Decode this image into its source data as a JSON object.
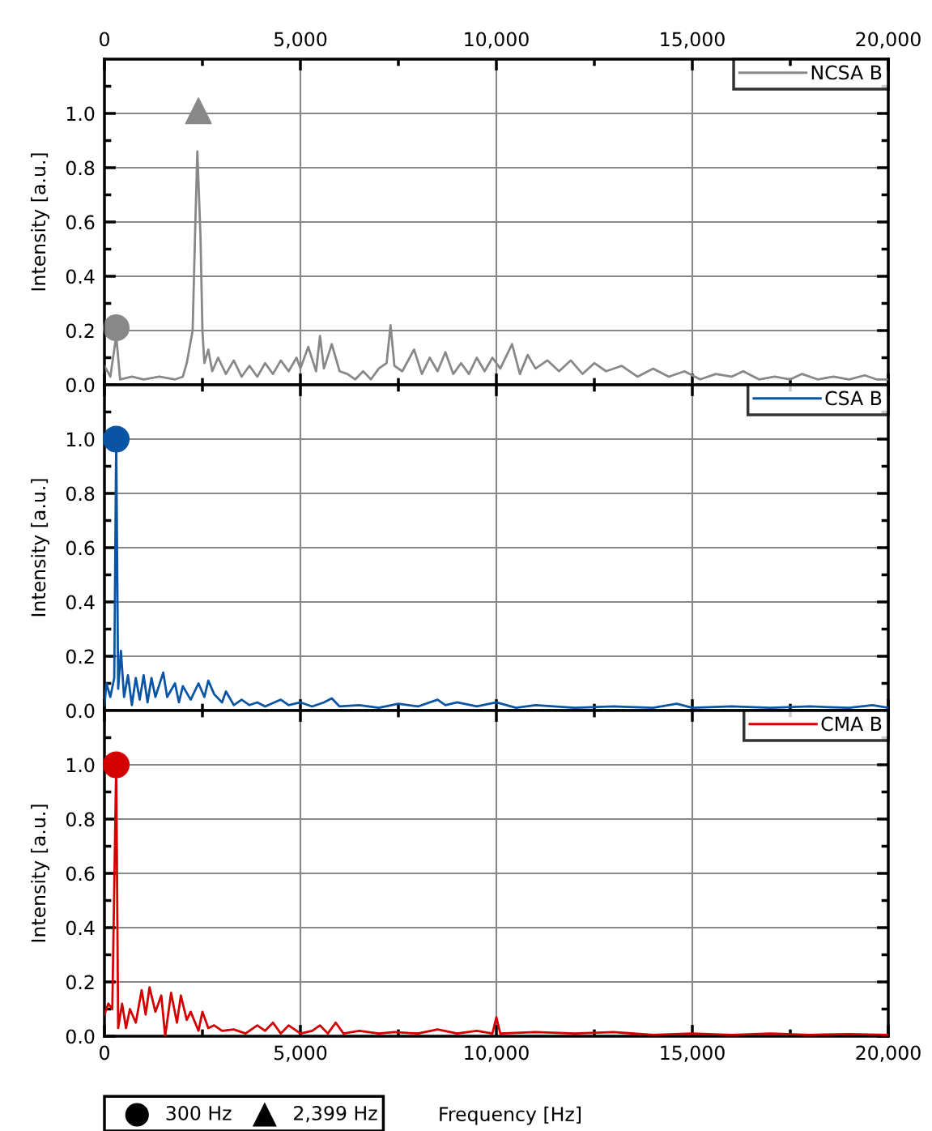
{
  "chart_data": [
    {
      "type": "line",
      "ylabel": "Intensity [a.u.]",
      "legend": "top right",
      "grid": true,
      "tick_labels": "y",
      "xlim": [
        0,
        20000
      ],
      "xticks": [
        0,
        {
          "value": 2500,
          "label": null
        },
        5000,
        {
          "value": 7500,
          "label": null
        },
        10000,
        {
          "value": 12500,
          "label": null
        },
        15000,
        {
          "value": 17500,
          "label": null
        },
        20000
      ],
      "x2lim": [
        0,
        20000
      ],
      "x2ticks": [
        {
          "value": 0,
          "label": "0"
        },
        {
          "value": 2500,
          "label": null
        },
        {
          "value": 5000,
          "label": "5,000"
        },
        {
          "value": 7500,
          "label": null
        },
        {
          "value": 10000,
          "label": "10,000"
        },
        {
          "value": 12500,
          "label": null
        },
        {
          "value": 15000,
          "label": "15,000"
        },
        {
          "value": 17500,
          "label": null
        },
        {
          "value": 20000,
          "label": "20,000"
        }
      ],
      "ylim": [
        0,
        1.2
      ],
      "yticks": [
        {
          "value": 0,
          "label": "0.0"
        },
        {
          "value": 0.1,
          "label": null
        },
        {
          "value": 0.2,
          "label": "0.2"
        },
        {
          "value": 0.3,
          "label": null
        },
        {
          "value": 0.4,
          "label": "0.4"
        },
        {
          "value": 0.5,
          "label": null
        },
        {
          "value": 0.6,
          "label": "0.6"
        },
        {
          "value": 0.7,
          "label": null
        },
        {
          "value": 0.8,
          "label": "0.8"
        },
        {
          "value": 0.9,
          "label": null
        },
        {
          "value": 1.0,
          "label": "1.0"
        },
        {
          "value": 1.1,
          "label": null
        }
      ],
      "series": [
        {
          "name": "NCSA B",
          "color": "#888888",
          "x": [
            0,
            150,
            300,
            400,
            700,
            1000,
            1400,
            1800,
            2000,
            2100,
            2250,
            2320,
            2370,
            2450,
            2500,
            2550,
            2650,
            2750,
            2900,
            3100,
            3300,
            3500,
            3700,
            3900,
            4100,
            4300,
            4500,
            4700,
            4900,
            5000,
            5200,
            5400,
            5500,
            5600,
            5800,
            6000,
            6200,
            6400,
            6600,
            6800,
            7000,
            7200,
            7300,
            7400,
            7600,
            7900,
            8100,
            8300,
            8500,
            8700,
            8900,
            9100,
            9300,
            9500,
            9700,
            9900,
            10100,
            10300,
            10400,
            10600,
            10800,
            11000,
            11300,
            11600,
            11900,
            12200,
            12500,
            12800,
            13200,
            13600,
            14000,
            14400,
            14800,
            15200,
            15600,
            16000,
            16300,
            16700,
            17100,
            17500,
            17800,
            18200,
            18600,
            19000,
            19400,
            19700,
            20000
          ],
          "values": [
            0.07,
            0.03,
            0.18,
            0.02,
            0.03,
            0.02,
            0.03,
            0.02,
            0.03,
            0.08,
            0.2,
            0.6,
            0.86,
            0.55,
            0.2,
            0.08,
            0.13,
            0.05,
            0.1,
            0.04,
            0.09,
            0.03,
            0.07,
            0.03,
            0.08,
            0.04,
            0.09,
            0.05,
            0.1,
            0.06,
            0.14,
            0.05,
            0.18,
            0.06,
            0.15,
            0.05,
            0.04,
            0.02,
            0.05,
            0.02,
            0.06,
            0.08,
            0.22,
            0.07,
            0.05,
            0.13,
            0.04,
            0.1,
            0.05,
            0.12,
            0.04,
            0.08,
            0.04,
            0.1,
            0.05,
            0.1,
            0.06,
            0.12,
            0.15,
            0.04,
            0.11,
            0.06,
            0.09,
            0.05,
            0.09,
            0.04,
            0.08,
            0.05,
            0.07,
            0.03,
            0.06,
            0.03,
            0.05,
            0.02,
            0.04,
            0.03,
            0.05,
            0.02,
            0.03,
            0.02,
            0.04,
            0.02,
            0.03,
            0.02,
            0.035,
            0.02,
            0.02
          ]
        },
        {
          "type": "scatter",
          "marker": "circle",
          "color": "#888888",
          "x": [
            300
          ],
          "values": [
            0.21
          ]
        },
        {
          "type": "scatter",
          "marker": "triangle",
          "color": "#888888",
          "x": [
            2399
          ],
          "values": [
            1.01
          ]
        }
      ]
    },
    {
      "type": "line",
      "ylabel": "Intensity [a.u.]",
      "legend": "top right",
      "grid": true,
      "tick_labels": "y",
      "xlim": [
        0,
        20000
      ],
      "xticks": [
        0,
        {
          "value": 2500,
          "label": null
        },
        5000,
        {
          "value": 7500,
          "label": null
        },
        10000,
        {
          "value": 12500,
          "label": null
        },
        15000,
        {
          "value": 17500,
          "label": null
        },
        20000
      ],
      "ylim": [
        0,
        1.2
      ],
      "yticks": [
        {
          "value": 0,
          "label": "0.0"
        },
        {
          "value": 0.1,
          "label": null
        },
        {
          "value": 0.2,
          "label": "0.2"
        },
        {
          "value": 0.3,
          "label": null
        },
        {
          "value": 0.4,
          "label": "0.4"
        },
        {
          "value": 0.5,
          "label": null
        },
        {
          "value": 0.6,
          "label": "0.6"
        },
        {
          "value": 0.7,
          "label": null
        },
        {
          "value": 0.8,
          "label": "0.8"
        },
        {
          "value": 0.9,
          "label": null
        },
        {
          "value": 1.0,
          "label": "1.0"
        },
        {
          "value": 1.1,
          "label": null
        }
      ],
      "series": [
        {
          "name": "CSA B",
          "color": "#0a55a3",
          "x": [
            0,
            50,
            150,
            250,
            300,
            350,
            420,
            500,
            600,
            700,
            800,
            900,
            1000,
            1100,
            1200,
            1300,
            1500,
            1600,
            1800,
            1900,
            2000,
            2200,
            2400,
            2550,
            2650,
            2800,
            3000,
            3100,
            3300,
            3500,
            3700,
            3900,
            4100,
            4500,
            4700,
            5000,
            5300,
            5600,
            5800,
            6000,
            6500,
            7000,
            7500,
            8000,
            8500,
            8700,
            9000,
            9500,
            10000,
            10500,
            11000,
            12000,
            13000,
            14000,
            14600,
            15000,
            16000,
            17000,
            18000,
            19000,
            19600,
            20000
          ],
          "values": [
            0.02,
            0.1,
            0.05,
            0.12,
            1.0,
            0.08,
            0.22,
            0.05,
            0.13,
            0.02,
            0.12,
            0.04,
            0.13,
            0.03,
            0.12,
            0.05,
            0.14,
            0.05,
            0.1,
            0.03,
            0.09,
            0.04,
            0.1,
            0.05,
            0.11,
            0.06,
            0.03,
            0.07,
            0.02,
            0.04,
            0.02,
            0.03,
            0.015,
            0.04,
            0.02,
            0.03,
            0.015,
            0.03,
            0.045,
            0.015,
            0.02,
            0.01,
            0.025,
            0.015,
            0.04,
            0.02,
            0.03,
            0.015,
            0.03,
            0.01,
            0.02,
            0.01,
            0.015,
            0.01,
            0.025,
            0.01,
            0.015,
            0.01,
            0.015,
            0.01,
            0.02,
            0.01
          ]
        },
        {
          "type": "scatter",
          "marker": "circle",
          "color": "#0a55a3",
          "x": [
            300
          ],
          "values": [
            1.0
          ]
        }
      ]
    },
    {
      "type": "line",
      "ylabel": "Intensity [a.u.]",
      "xlabel": "Frequency [Hz]",
      "legend": "top right",
      "grid": true,
      "annotations": [
        "300 Hz",
        "2,399 Hz"
      ],
      "xlim": [
        0,
        20000
      ],
      "xticks": [
        {
          "value": 0,
          "label": "0"
        },
        {
          "value": 2500,
          "label": null
        },
        {
          "value": 5000,
          "label": "5,000"
        },
        {
          "value": 7500,
          "label": null
        },
        {
          "value": 10000,
          "label": "10,000"
        },
        {
          "value": 12500,
          "label": null
        },
        {
          "value": 15000,
          "label": "15,000"
        },
        {
          "value": 17500,
          "label": null
        },
        {
          "value": 20000,
          "label": "20,000"
        }
      ],
      "ylim": [
        0,
        1.2
      ],
      "yticks": [
        {
          "value": 0,
          "label": "0.0"
        },
        {
          "value": 0.1,
          "label": null
        },
        {
          "value": 0.2,
          "label": "0.2"
        },
        {
          "value": 0.3,
          "label": null
        },
        {
          "value": 0.4,
          "label": "0.4"
        },
        {
          "value": 0.5,
          "label": null
        },
        {
          "value": 0.6,
          "label": "0.6"
        },
        {
          "value": 0.7,
          "label": null
        },
        {
          "value": 0.8,
          "label": "0.8"
        },
        {
          "value": 0.9,
          "label": null
        },
        {
          "value": 1.0,
          "label": "1.0"
        },
        {
          "value": 1.1,
          "label": null
        }
      ],
      "series": [
        {
          "name": "CMA B",
          "color": "#d40000",
          "x": [
            0,
            100,
            200,
            300,
            350,
            450,
            550,
            650,
            800,
            950,
            1050,
            1150,
            1300,
            1450,
            1550,
            1700,
            1850,
            1950,
            2100,
            2200,
            2400,
            2500,
            2650,
            2800,
            3000,
            3300,
            3600,
            3900,
            4100,
            4300,
            4500,
            4700,
            5000,
            5300,
            5500,
            5700,
            5900,
            6100,
            6500,
            7000,
            7400,
            8000,
            8500,
            9000,
            9500,
            9900,
            10000,
            10100,
            11000,
            12000,
            13000,
            14000,
            15000,
            16000,
            17000,
            18000,
            19000,
            20000
          ],
          "values": [
            0.08,
            0.12,
            0.1,
            1.0,
            0.03,
            0.12,
            0.03,
            0.1,
            0.05,
            0.17,
            0.08,
            0.18,
            0.09,
            0.15,
            0.0,
            0.16,
            0.05,
            0.15,
            0.06,
            0.09,
            0.02,
            0.09,
            0.03,
            0.04,
            0.02,
            0.025,
            0.01,
            0.04,
            0.02,
            0.05,
            0.01,
            0.04,
            0.01,
            0.02,
            0.04,
            0.01,
            0.05,
            0.01,
            0.02,
            0.01,
            0.015,
            0.01,
            0.025,
            0.01,
            0.02,
            0.01,
            0.07,
            0.01,
            0.015,
            0.01,
            0.015,
            0.005,
            0.01,
            0.005,
            0.01,
            0.005,
            0.008,
            0.005
          ]
        },
        {
          "type": "scatter",
          "marker": "circle",
          "color": "#d40000",
          "x": [
            300
          ],
          "values": [
            1.0
          ]
        }
      ]
    }
  ]
}
